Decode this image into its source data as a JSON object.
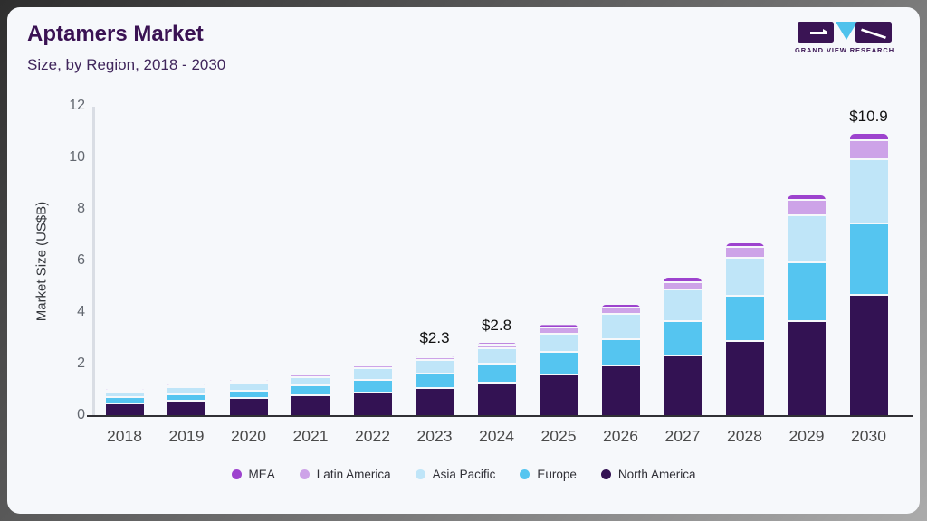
{
  "header": {
    "title": "Aptamers Market",
    "subtitle": "Size, by Region, 2018 - 2030"
  },
  "logo": {
    "text": "GRAND VIEW RESEARCH",
    "block_color": "#3a1454",
    "triangle_color": "#4fc2ec"
  },
  "colors": {
    "card_background": "#f6f8fb",
    "title": "#3a1253",
    "x_axis_line": "#303035",
    "y_axis_line": "#d9dde4"
  },
  "chart_data": {
    "type": "bar",
    "stacked": true,
    "title": "Aptamers Market Size, by Region, 2018 - 2030",
    "xlabel": "",
    "ylabel": "Market Size (US$B)",
    "ylim": [
      0,
      12
    ],
    "yticks": [
      0,
      2,
      4,
      6,
      8,
      10,
      12
    ],
    "grid": false,
    "legend_position": "bottom",
    "legend_order": [
      "MEA",
      "Latin America",
      "Asia Pacific",
      "Europe",
      "North America"
    ],
    "categories": [
      "2018",
      "2019",
      "2020",
      "2021",
      "2022",
      "2023",
      "2024",
      "2025",
      "2026",
      "2027",
      "2028",
      "2029",
      "2030"
    ],
    "series": [
      {
        "name": "North America",
        "color": "#331253",
        "values": [
          0.42,
          0.52,
          0.62,
          0.74,
          0.86,
          1.03,
          1.24,
          1.53,
          1.88,
          2.28,
          2.83,
          3.63,
          4.62
        ]
      },
      {
        "name": "Europe",
        "color": "#55c5f0",
        "values": [
          0.24,
          0.27,
          0.31,
          0.38,
          0.47,
          0.55,
          0.72,
          0.89,
          1.05,
          1.35,
          1.77,
          2.25,
          2.77
        ]
      },
      {
        "name": "Asia Pacific",
        "color": "#bfe5f8",
        "values": [
          0.22,
          0.26,
          0.29,
          0.32,
          0.45,
          0.52,
          0.6,
          0.72,
          0.97,
          1.22,
          1.46,
          1.85,
          2.52
        ]
      },
      {
        "name": "Latin America",
        "color": "#cda3e8",
        "values": [
          0.07,
          0.08,
          0.09,
          0.1,
          0.11,
          0.12,
          0.14,
          0.24,
          0.23,
          0.29,
          0.42,
          0.6,
          0.71
        ]
      },
      {
        "name": "MEA",
        "color": "#9d43ce",
        "values": [
          0.05,
          0.06,
          0.07,
          0.07,
          0.07,
          0.08,
          0.1,
          0.12,
          0.15,
          0.18,
          0.19,
          0.2,
          0.28
        ]
      }
    ],
    "totals_labeled": [
      {
        "category": "2023",
        "text": "$2.3"
      },
      {
        "category": "2024",
        "text": "$2.8"
      },
      {
        "category": "2030",
        "text": "$10.9"
      }
    ]
  }
}
